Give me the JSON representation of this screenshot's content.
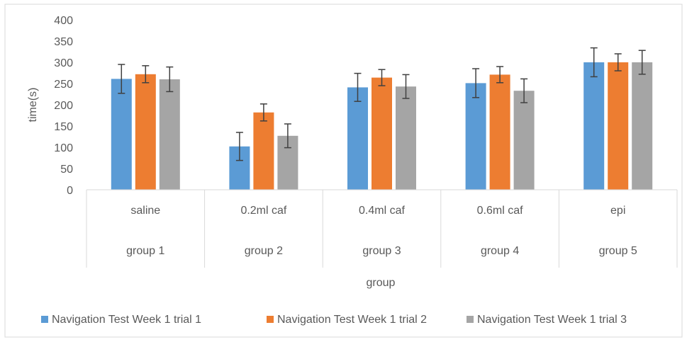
{
  "chart_data": {
    "type": "bar",
    "title": "",
    "xlabel": "group",
    "ylabel": "time(s)",
    "ylim": [
      0,
      400
    ],
    "yticks": [
      0,
      50,
      100,
      150,
      200,
      250,
      300,
      350,
      400
    ],
    "grid": false,
    "legend": "bottom",
    "categories": [
      "saline",
      "0.2ml caf",
      "0.4ml caf",
      "0.6ml caf",
      "epi"
    ],
    "groups": [
      "group 1",
      "group 2",
      "group 3",
      "group 4",
      "group 5"
    ],
    "series": [
      {
        "name": "Navigation Test Week 1 trial 1",
        "color": "#5B9BD5",
        "values": [
          261,
          102,
          241,
          251,
          300
        ],
        "errors": [
          34,
          33,
          33,
          34,
          34
        ]
      },
      {
        "name": "Navigation Test Week 1 trial 2",
        "color": "#ED7D31",
        "values": [
          272,
          182,
          264,
          271,
          300
        ],
        "errors": [
          20,
          20,
          19,
          19,
          20
        ]
      },
      {
        "name": "Navigation Test Week 1 trial 3",
        "color": "#A5A5A5",
        "values": [
          260,
          127,
          243,
          233,
          300
        ],
        "errors": [
          29,
          28,
          28,
          28,
          28
        ]
      }
    ]
  }
}
